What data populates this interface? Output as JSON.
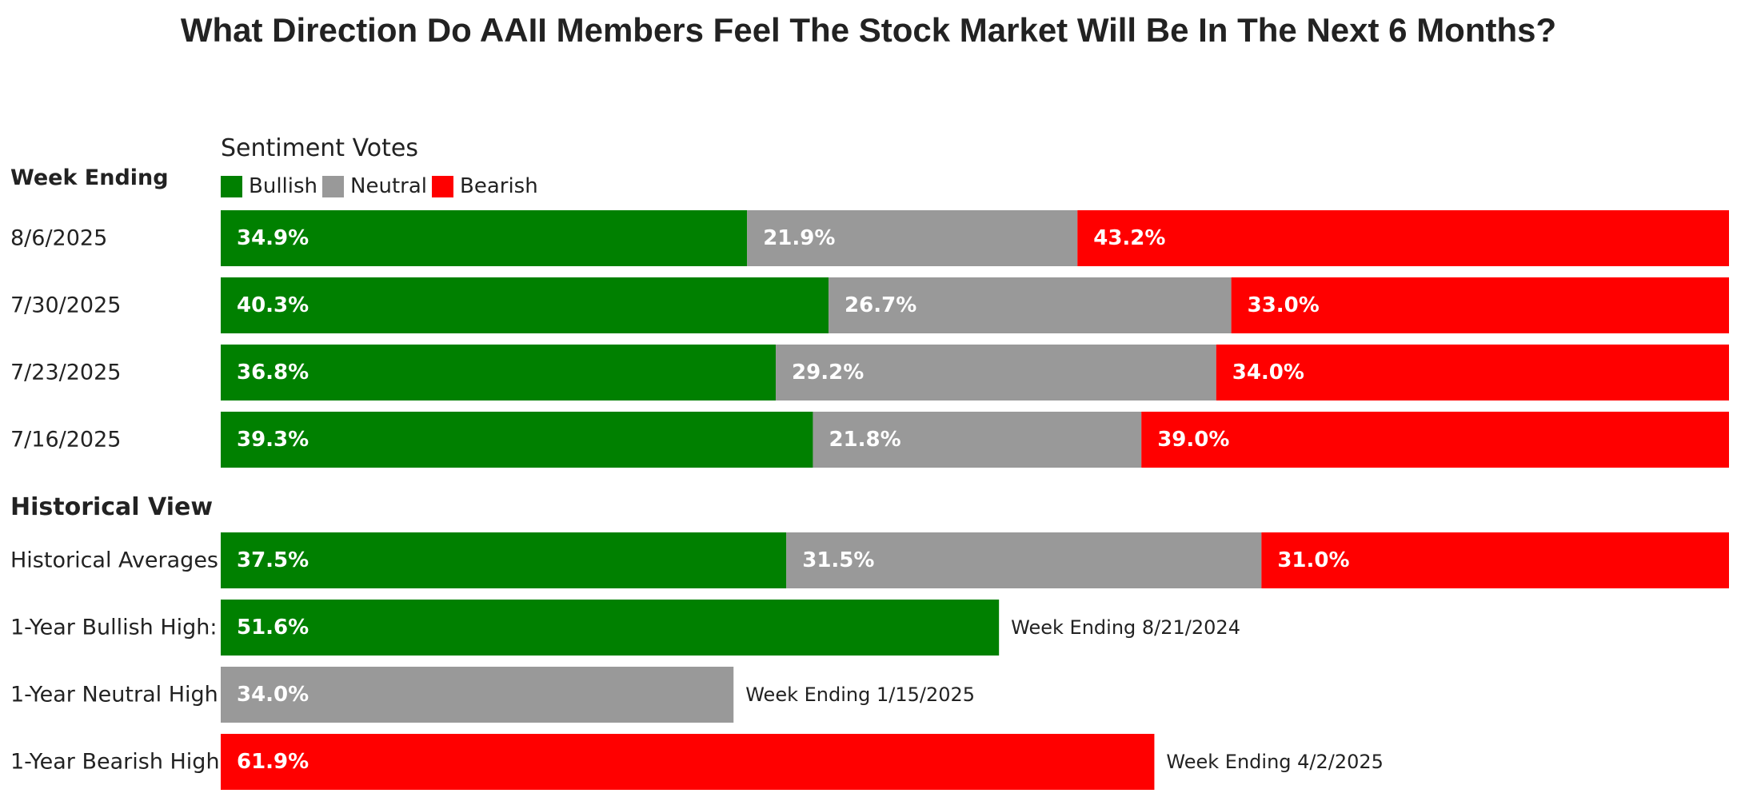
{
  "chart_data": {
    "type": "bar",
    "stacked": true,
    "orientation": "horizontal",
    "title": "What Direction Do AAII Members Feel The Stock Market Will Be In The Next 6 Months?",
    "subtitle": "Sentiment Votes",
    "legend": [
      {
        "name": "Bullish",
        "color": "#008000"
      },
      {
        "name": "Neutral",
        "color": "#999999"
      },
      {
        "name": "Bearish",
        "color": "#ff0000"
      }
    ],
    "weekly_heading": "Week Ending",
    "weekly": [
      {
        "label": "8/6/2025",
        "bullish": 34.9,
        "neutral": 21.9,
        "bearish": 43.2,
        "bullish_text": "34.9%",
        "neutral_text": "21.9%",
        "bearish_text": "43.2%"
      },
      {
        "label": "7/30/2025",
        "bullish": 40.3,
        "neutral": 26.7,
        "bearish": 33.0,
        "bullish_text": "40.3%",
        "neutral_text": "26.7%",
        "bearish_text": "33.0%"
      },
      {
        "label": "7/23/2025",
        "bullish": 36.8,
        "neutral": 29.2,
        "bearish": 34.0,
        "bullish_text": "36.8%",
        "neutral_text": "29.2%",
        "bearish_text": "34.0%"
      },
      {
        "label": "7/16/2025",
        "bullish": 39.3,
        "neutral": 21.8,
        "bearish": 39.0,
        "bullish_text": "39.3%",
        "neutral_text": "21.8%",
        "bearish_text": "39.0%"
      }
    ],
    "historical_heading": "Historical View",
    "historical_average": {
      "label": "Historical Averages",
      "bullish": 37.5,
      "neutral": 31.5,
      "bearish": 31.0,
      "bullish_text": "37.5%",
      "neutral_text": "31.5%",
      "bearish_text": "31.0%"
    },
    "highs": [
      {
        "label": "1-Year Bullish High:",
        "category": "bullish",
        "value": 51.6,
        "value_text": "51.6%",
        "note": "Week Ending 8/21/2024"
      },
      {
        "label": "1-Year Neutral High",
        "category": "neutral",
        "value": 34.0,
        "value_text": "34.0%",
        "note": "Week Ending 1/15/2025"
      },
      {
        "label": "1-Year Bearish High",
        "category": "bearish",
        "value": 61.9,
        "value_text": "61.9%",
        "note": "Week Ending 4/2/2025"
      }
    ],
    "xlim": [
      0,
      100
    ]
  }
}
